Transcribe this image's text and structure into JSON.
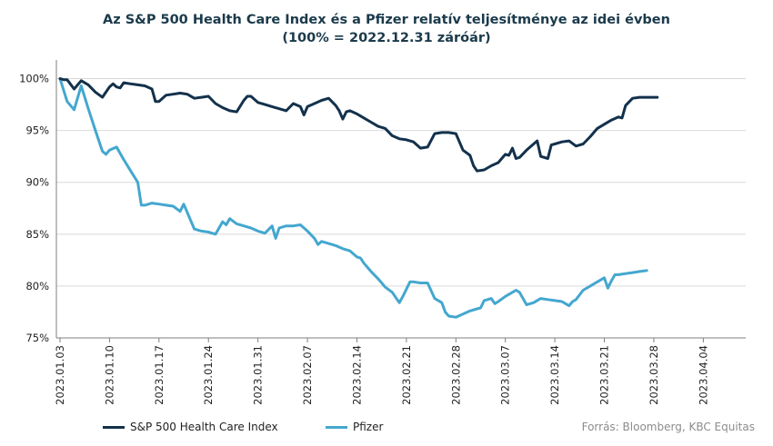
{
  "chart_data": {
    "type": "line",
    "title": "Az S&P 500 Health Care Index és a Pfizer relatív teljesítménye az idei évben",
    "subtitle": "(100% = 2022.12.31 záróár)",
    "ylim": [
      75,
      101.8
    ],
    "y_ticks": [
      "75%",
      "80%",
      "85%",
      "90%",
      "95%",
      "100%"
    ],
    "y_tick_values": [
      75,
      80,
      85,
      90,
      95,
      100
    ],
    "x_tick_labels": [
      "2023.01.03",
      "2023.01.10",
      "2023.01.17",
      "2023.01.24",
      "2023.01.31",
      "2023.02.07",
      "2023.02.14",
      "2023.02.21",
      "2023.02.28",
      "2023.03.07",
      "2023.03.14",
      "2023.03.21",
      "2023.03.28",
      "2023.04.04"
    ],
    "x_tick_days": [
      2,
      9,
      16,
      23,
      30,
      37,
      44,
      51,
      58,
      65,
      72,
      79,
      86,
      93
    ],
    "x_range_days": [
      2,
      99
    ],
    "grid": true,
    "series": [
      {
        "name": "S&P 500 Health Care Index",
        "color": "#13314c",
        "points": [
          [
            2,
            100
          ],
          [
            2.5,
            99.9
          ],
          [
            3,
            99.9
          ],
          [
            4,
            99
          ],
          [
            5,
            99.8
          ],
          [
            6,
            99.4
          ],
          [
            7,
            98.7
          ],
          [
            8,
            98.2
          ],
          [
            9,
            99.2
          ],
          [
            9.5,
            99.5
          ],
          [
            10,
            99.2
          ],
          [
            10.5,
            99.1
          ],
          [
            11,
            99.6
          ],
          [
            12,
            99.5
          ],
          [
            13,
            99.4
          ],
          [
            14,
            99.3
          ],
          [
            15,
            99
          ],
          [
            15.5,
            97.8
          ],
          [
            16,
            97.8
          ],
          [
            17,
            98.4
          ],
          [
            18,
            98.5
          ],
          [
            19,
            98.6
          ],
          [
            20,
            98.5
          ],
          [
            21,
            98.1
          ],
          [
            22,
            98.2
          ],
          [
            23,
            98.3
          ],
          [
            24,
            97.6
          ],
          [
            25,
            97.2
          ],
          [
            26,
            96.9
          ],
          [
            27,
            96.8
          ],
          [
            28,
            97.9
          ],
          [
            28.5,
            98.3
          ],
          [
            29,
            98.3
          ],
          [
            30,
            97.7
          ],
          [
            31,
            97.5
          ],
          [
            32,
            97.3
          ],
          [
            33,
            97.1
          ],
          [
            34,
            96.9
          ],
          [
            35,
            97.6
          ],
          [
            36,
            97.3
          ],
          [
            36.5,
            96.5
          ],
          [
            37,
            97.3
          ],
          [
            38,
            97.6
          ],
          [
            39,
            97.9
          ],
          [
            40,
            98.1
          ],
          [
            41,
            97.4
          ],
          [
            41.5,
            96.9
          ],
          [
            42,
            96.1
          ],
          [
            42.5,
            96.8
          ],
          [
            43,
            96.9
          ],
          [
            44,
            96.6
          ],
          [
            45,
            96.2
          ],
          [
            46,
            95.8
          ],
          [
            47,
            95.4
          ],
          [
            48,
            95.2
          ],
          [
            49,
            94.5
          ],
          [
            50,
            94.2
          ],
          [
            51,
            94.1
          ],
          [
            52,
            93.9
          ],
          [
            53,
            93.3
          ],
          [
            54,
            93.4
          ],
          [
            55,
            94.7
          ],
          [
            56,
            94.8
          ],
          [
            57,
            94.8
          ],
          [
            58,
            94.7
          ],
          [
            58.5,
            93.9
          ],
          [
            59,
            93.1
          ],
          [
            60,
            92.6
          ],
          [
            60.5,
            91.6
          ],
          [
            61,
            91.1
          ],
          [
            62,
            91.2
          ],
          [
            63,
            91.6
          ],
          [
            64,
            91.9
          ],
          [
            65,
            92.7
          ],
          [
            65.5,
            92.6
          ],
          [
            66,
            93.3
          ],
          [
            66.5,
            92.3
          ],
          [
            67,
            92.4
          ],
          [
            68,
            93.1
          ],
          [
            69,
            93.7
          ],
          [
            69.5,
            94
          ],
          [
            70,
            92.5
          ],
          [
            71,
            92.3
          ],
          [
            71.5,
            93.6
          ],
          [
            72,
            93.7
          ],
          [
            73,
            93.9
          ],
          [
            74,
            94
          ],
          [
            75,
            93.5
          ],
          [
            76,
            93.7
          ],
          [
            77,
            94.4
          ],
          [
            78,
            95.2
          ],
          [
            79,
            95.6
          ],
          [
            80,
            96
          ],
          [
            81,
            96.3
          ],
          [
            81.5,
            96.2
          ],
          [
            82,
            97.4
          ],
          [
            83,
            98.1
          ],
          [
            84,
            98.2
          ],
          [
            85,
            98.2
          ],
          [
            86,
            98.2
          ],
          [
            86.5,
            98.2
          ]
        ]
      },
      {
        "name": "Pfizer",
        "color": "#44a7cf",
        "points": [
          [
            2,
            100
          ],
          [
            3,
            97.8
          ],
          [
            4,
            97
          ],
          [
            5,
            99.3
          ],
          [
            6,
            97.1
          ],
          [
            7,
            95
          ],
          [
            8,
            93
          ],
          [
            8.5,
            92.7
          ],
          [
            9,
            93.1
          ],
          [
            10,
            93.4
          ],
          [
            11,
            92.2
          ],
          [
            12,
            91.1
          ],
          [
            13,
            90
          ],
          [
            13.5,
            87.8
          ],
          [
            14,
            87.8
          ],
          [
            15,
            88
          ],
          [
            16,
            87.9
          ],
          [
            17,
            87.8
          ],
          [
            18,
            87.7
          ],
          [
            19,
            87.2
          ],
          [
            19.5,
            87.9
          ],
          [
            20,
            87.1
          ],
          [
            20.5,
            86.3
          ],
          [
            21,
            85.5
          ],
          [
            22,
            85.3
          ],
          [
            23,
            85.2
          ],
          [
            24,
            85
          ],
          [
            25,
            86.2
          ],
          [
            25.5,
            85.9
          ],
          [
            26,
            86.5
          ],
          [
            27,
            86
          ],
          [
            28,
            85.8
          ],
          [
            29,
            85.6
          ],
          [
            30,
            85.3
          ],
          [
            31,
            85.1
          ],
          [
            32,
            85.8
          ],
          [
            32.5,
            84.6
          ],
          [
            33,
            85.6
          ],
          [
            34,
            85.8
          ],
          [
            35,
            85.8
          ],
          [
            36,
            85.9
          ],
          [
            37,
            85.3
          ],
          [
            38,
            84.6
          ],
          [
            38.5,
            84
          ],
          [
            39,
            84.3
          ],
          [
            40,
            84.1
          ],
          [
            41,
            83.9
          ],
          [
            42,
            83.6
          ],
          [
            43,
            83.4
          ],
          [
            44,
            82.8
          ],
          [
            44.5,
            82.7
          ],
          [
            45,
            82.2
          ],
          [
            46,
            81.4
          ],
          [
            47,
            80.7
          ],
          [
            48,
            79.9
          ],
          [
            49,
            79.4
          ],
          [
            50,
            78.4
          ],
          [
            50.5,
            79
          ],
          [
            51.5,
            80.4
          ],
          [
            52,
            80.4
          ],
          [
            53,
            80.3
          ],
          [
            54,
            80.3
          ],
          [
            55,
            78.8
          ],
          [
            56,
            78.4
          ],
          [
            56.5,
            77.5
          ],
          [
            57,
            77.1
          ],
          [
            58,
            77
          ],
          [
            59,
            77.3
          ],
          [
            60,
            77.6
          ],
          [
            61,
            77.8
          ],
          [
            61.5,
            77.9
          ],
          [
            62,
            78.6
          ],
          [
            63,
            78.8
          ],
          [
            63.5,
            78.3
          ],
          [
            64,
            78.5
          ],
          [
            65,
            79
          ],
          [
            66,
            79.4
          ],
          [
            66.5,
            79.6
          ],
          [
            67,
            79.4
          ],
          [
            68,
            78.2
          ],
          [
            69,
            78.4
          ],
          [
            70,
            78.8
          ],
          [
            71,
            78.7
          ],
          [
            72,
            78.6
          ],
          [
            73,
            78.5
          ],
          [
            74,
            78.1
          ],
          [
            74.5,
            78.5
          ],
          [
            75,
            78.7
          ],
          [
            76,
            79.6
          ],
          [
            77,
            80
          ],
          [
            78,
            80.4
          ],
          [
            79,
            80.8
          ],
          [
            79.5,
            79.8
          ],
          [
            80,
            80.5
          ],
          [
            80.5,
            81.1
          ],
          [
            81,
            81.1
          ],
          [
            82,
            81.2
          ],
          [
            83,
            81.3
          ],
          [
            84,
            81.4
          ],
          [
            85,
            81.5
          ]
        ]
      }
    ]
  },
  "legend": {
    "items": [
      {
        "label": "S&P 500 Health Care Index",
        "color": "#13314c"
      },
      {
        "label": "Pfizer",
        "color": "#44a7cf"
      }
    ]
  },
  "source": "Forrás: Bloomberg, KBC Equitas"
}
